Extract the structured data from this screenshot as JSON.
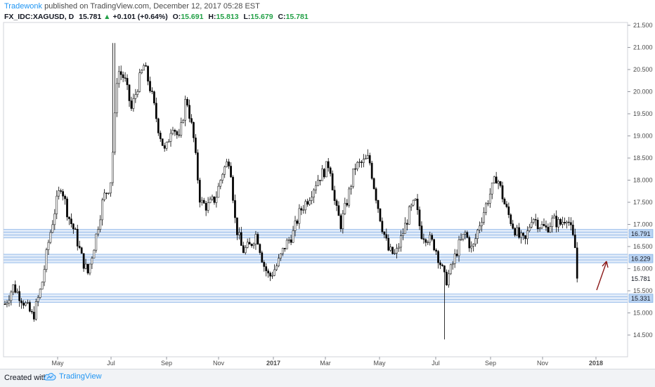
{
  "header": {
    "author": "Tradewonk",
    "published_text": "published on TradingView.com, December 12, 2017 05:28 EST",
    "symbol": "FX_IDC:XAGUSD, D",
    "last": "15.781",
    "change": "+0.101 (+0.64%)",
    "open_label": "O:",
    "open": "15.691",
    "high_label": "H:",
    "high": "15.813",
    "low_label": "L:",
    "low": "15.679",
    "close_label": "C:",
    "close": "15.781"
  },
  "footer": {
    "created_with": "Created with",
    "brand": "TradingView"
  },
  "colors": {
    "up_candle": "#ffffff",
    "down_candle": "#000000",
    "wick": "#000000",
    "zone_fill": "#d6e4f7",
    "zone_line": "#8ab4e8",
    "arrow": "#8b1a1a",
    "price_up_text": "#22a046",
    "author": "#2196f3"
  },
  "chart_data": {
    "type": "candlestick",
    "symbol": "FX_IDC:XAGUSD",
    "timeframe": "D",
    "ylim": [
      14.0,
      21.5
    ],
    "y_ticks": [
      "21.500",
      "21.000",
      "20.500",
      "20.000",
      "19.500",
      "19.000",
      "18.500",
      "18.000",
      "17.500",
      "17.000",
      "16.500",
      "16.000",
      "15.500",
      "15.000",
      "14.500"
    ],
    "x_ticks": [
      "May",
      "Jul",
      "Sep",
      "Nov",
      "2017",
      "Mar",
      "May",
      "Jul",
      "Sep",
      "Nov",
      "2018"
    ],
    "x_ticks_bold": [
      "2017",
      "2018"
    ],
    "support_resistance_levels": [
      {
        "label": "16.791",
        "value": 16.791
      },
      {
        "label": "16.229",
        "value": 16.229
      },
      {
        "label": "15.331",
        "value": 15.331
      }
    ],
    "last_price": {
      "label": "15.781",
      "value": 15.781
    },
    "annotations": [
      {
        "type": "arrow",
        "direction": "up",
        "color": "#8b1a1a"
      }
    ],
    "price_path": [
      [
        0,
        15.2
      ],
      [
        12,
        15.6
      ],
      [
        25,
        15.3
      ],
      [
        40,
        14.9
      ],
      [
        52,
        15.6
      ],
      [
        62,
        16.6
      ],
      [
        72,
        17.4
      ],
      [
        80,
        17.9
      ],
      [
        90,
        17.2
      ],
      [
        100,
        16.8
      ],
      [
        110,
        16.2
      ],
      [
        118,
        15.9
      ],
      [
        128,
        16.6
      ],
      [
        140,
        17.6
      ],
      [
        150,
        17.9
      ],
      [
        155,
        19.0
      ],
      [
        160,
        20.5
      ],
      [
        170,
        20.3
      ],
      [
        180,
        19.6
      ],
      [
        190,
        20.2
      ],
      [
        198,
        20.6
      ],
      [
        208,
        20.0
      ],
      [
        218,
        19.2
      ],
      [
        228,
        18.6
      ],
      [
        238,
        19.3
      ],
      [
        248,
        18.9
      ],
      [
        258,
        19.9
      ],
      [
        268,
        19.0
      ],
      [
        278,
        17.5
      ],
      [
        288,
        17.4
      ],
      [
        300,
        17.6
      ],
      [
        310,
        18.2
      ],
      [
        320,
        18.5
      ],
      [
        328,
        17.0
      ],
      [
        338,
        16.4
      ],
      [
        348,
        16.5
      ],
      [
        358,
        16.8
      ],
      [
        368,
        16.1
      ],
      [
        376,
        15.8
      ],
      [
        388,
        16.1
      ],
      [
        398,
        16.5
      ],
      [
        410,
        16.8
      ],
      [
        420,
        17.3
      ],
      [
        432,
        17.6
      ],
      [
        444,
        18.0
      ],
      [
        454,
        18.2
      ],
      [
        462,
        18.4
      ],
      [
        470,
        17.4
      ],
      [
        478,
        17.0
      ],
      [
        488,
        17.6
      ],
      [
        498,
        18.3
      ],
      [
        510,
        18.4
      ],
      [
        518,
        18.5
      ],
      [
        526,
        17.8
      ],
      [
        536,
        17.0
      ],
      [
        546,
        16.4
      ],
      [
        556,
        16.3
      ],
      [
        566,
        16.8
      ],
      [
        576,
        17.3
      ],
      [
        584,
        17.5
      ],
      [
        592,
        16.8
      ],
      [
        602,
        16.7
      ],
      [
        612,
        16.5
      ],
      [
        620,
        16.1
      ],
      [
        627,
        15.7
      ],
      [
        635,
        16.0
      ],
      [
        645,
        16.5
      ],
      [
        655,
        16.8
      ],
      [
        665,
        16.4
      ],
      [
        675,
        17.0
      ],
      [
        688,
        17.6
      ],
      [
        700,
        18.1
      ],
      [
        712,
        17.4
      ],
      [
        722,
        17.0
      ],
      [
        732,
        16.7
      ],
      [
        740,
        16.6
      ],
      [
        750,
        17.2
      ],
      [
        760,
        17.0
      ],
      [
        770,
        16.9
      ],
      [
        780,
        17.1
      ],
      [
        790,
        17.0
      ],
      [
        800,
        17.2
      ],
      [
        808,
        16.7
      ],
      [
        815,
        16.2
      ],
      [
        820,
        15.8
      ]
    ]
  }
}
